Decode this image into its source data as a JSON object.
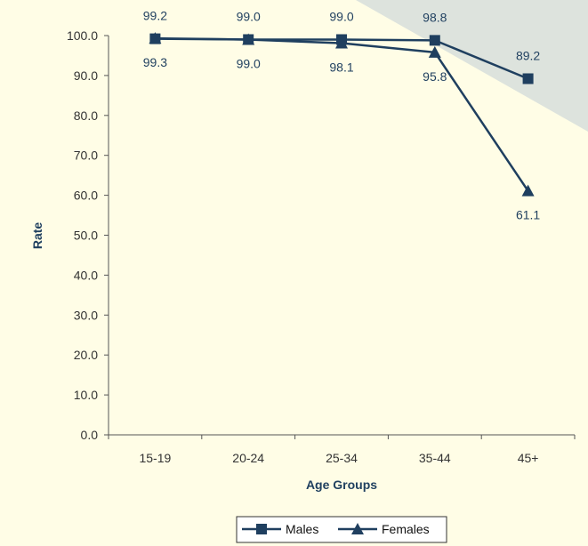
{
  "chart_data": {
    "type": "line",
    "xlabel": "Age Groups",
    "ylabel": "Rate",
    "categories": [
      "15-19",
      "20-24",
      "25-34",
      "35-44",
      "45+"
    ],
    "ylim": [
      0,
      100
    ],
    "yticks": [
      "0.0",
      "10.0",
      "20.0",
      "30.0",
      "40.0",
      "50.0",
      "60.0",
      "70.0",
      "80.0",
      "90.0",
      "100.0"
    ],
    "series": [
      {
        "name": "Males",
        "marker": "square",
        "values": [
          99.2,
          99.0,
          99.0,
          98.8,
          89.2
        ],
        "labels": [
          "99.2",
          "99.0",
          "99.0",
          "98.8",
          "89.2"
        ]
      },
      {
        "name": "Females",
        "marker": "triangle",
        "values": [
          99.3,
          99.0,
          98.1,
          95.8,
          61.1
        ],
        "labels": [
          "99.3",
          "99.0",
          "98.1",
          "95.8",
          "61.1"
        ]
      }
    ],
    "legend_position": "bottom-center",
    "grid": false,
    "colors": {
      "line": "#1f3f5f",
      "background": "#fffde6",
      "corner_band": "#dde3dd"
    }
  }
}
